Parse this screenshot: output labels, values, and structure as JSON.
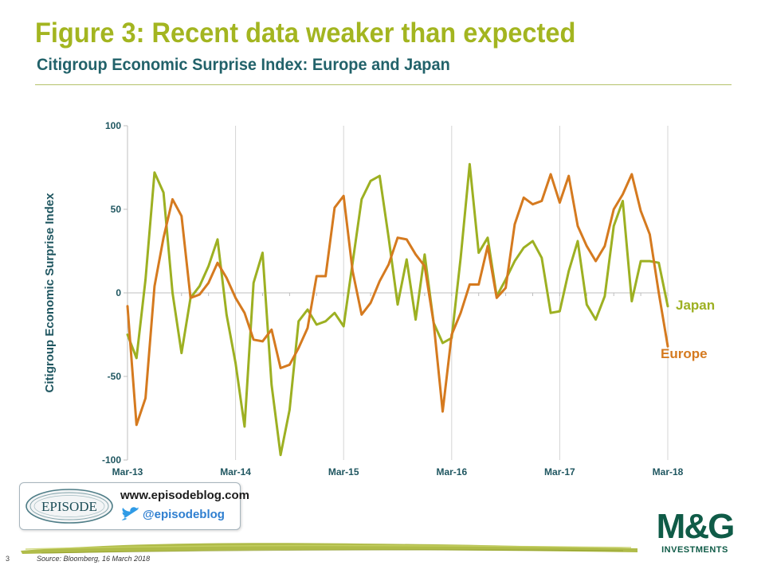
{
  "header": {
    "title": "Figure 3: Recent data weaker than expected",
    "subtitle": "Citigroup Economic Surprise Index: Europe and Japan"
  },
  "colors": {
    "title": "#a3b520",
    "subtitle": "#22626a",
    "japan": "#9db022",
    "europe": "#d57a1f",
    "axis_text": "#1f5660",
    "mg_green": "#0f5b47"
  },
  "chart_data": {
    "type": "line",
    "ylabel": "Citigroup Economic Surprise Index",
    "ylim": [
      -100,
      100
    ],
    "yticks": [
      100,
      50,
      0,
      -50,
      -100
    ],
    "ytick_labels": [
      "100",
      "50",
      "0",
      "-50",
      "-100"
    ],
    "xlim": [
      0,
      60
    ],
    "xticks": [
      0,
      12,
      24,
      36,
      48,
      60
    ],
    "xtick_labels": [
      "Mar-13",
      "Mar-14",
      "Mar-15",
      "Mar-16",
      "Mar-17",
      "Mar-18"
    ],
    "grid": "vertical",
    "series": [
      {
        "name": "Japan",
        "color": "#9db022",
        "x": [
          0,
          1,
          2,
          3,
          4,
          5,
          6,
          7,
          8,
          9,
          10,
          11,
          12,
          13,
          14,
          15,
          16,
          17,
          18,
          19,
          20,
          21,
          22,
          23,
          24,
          25,
          26,
          27,
          28,
          29,
          30,
          31,
          32,
          33,
          34,
          35,
          36,
          37,
          38,
          39,
          40,
          41,
          42,
          43,
          44,
          45,
          46,
          47,
          48,
          49,
          50,
          51,
          52,
          53,
          54,
          55,
          56,
          57,
          58,
          59,
          60
        ],
        "values": [
          -25,
          -39,
          8,
          72,
          60,
          0,
          -36,
          -3,
          4,
          16,
          32,
          -13,
          -42,
          -80,
          6,
          24,
          -55,
          -97,
          -70,
          -17,
          -10,
          -19,
          -17,
          -12,
          -20,
          18,
          56,
          67,
          70,
          33,
          -7,
          20,
          -16,
          23,
          -18,
          -30,
          -27,
          21,
          77,
          24,
          33,
          -2,
          8,
          19,
          27,
          31,
          21,
          -12,
          -11,
          13,
          31,
          -7,
          -16,
          -2,
          40,
          55,
          -5,
          19,
          19,
          18,
          -8
        ]
      },
      {
        "name": "Europe",
        "color": "#d57a1f",
        "x": [
          0,
          1,
          2,
          3,
          4,
          5,
          6,
          7,
          8,
          9,
          10,
          11,
          12,
          13,
          14,
          15,
          16,
          17,
          18,
          19,
          20,
          21,
          22,
          23,
          24,
          25,
          26,
          27,
          28,
          29,
          30,
          31,
          32,
          33,
          34,
          35,
          36,
          37,
          38,
          39,
          40,
          41,
          42,
          43,
          44,
          45,
          46,
          47,
          48,
          49,
          50,
          51,
          52,
          53,
          54,
          55,
          56,
          57,
          58,
          59,
          60
        ],
        "values": [
          -8,
          -79,
          -63,
          4,
          33,
          56,
          46,
          -3,
          -1,
          6,
          18,
          9,
          -3,
          -12,
          -28,
          -29,
          -22,
          -45,
          -43,
          -33,
          -21,
          10,
          10,
          51,
          58,
          13,
          -13,
          -6,
          7,
          17,
          33,
          32,
          23,
          16,
          -18,
          -71,
          -25,
          -12,
          5,
          5,
          28,
          -3,
          3,
          41,
          57,
          53,
          55,
          71,
          54,
          70,
          40,
          28,
          19,
          28,
          50,
          59,
          71,
          49,
          35,
          0,
          -32
        ]
      }
    ],
    "annotations": [
      {
        "text": "Japan",
        "series": "Japan"
      },
      {
        "text": "Europe",
        "series": "Europe"
      }
    ]
  },
  "branding": {
    "episode_logo_text": "EPISODE",
    "website": "www.episodeblog.com",
    "twitter": "@episodeblog",
    "mg_logo_text": "M&G",
    "mg_sub_text": "INVESTMENTS"
  },
  "footer": {
    "page_number": "3",
    "source": "Source: Bloomberg, 16 March 2018"
  }
}
